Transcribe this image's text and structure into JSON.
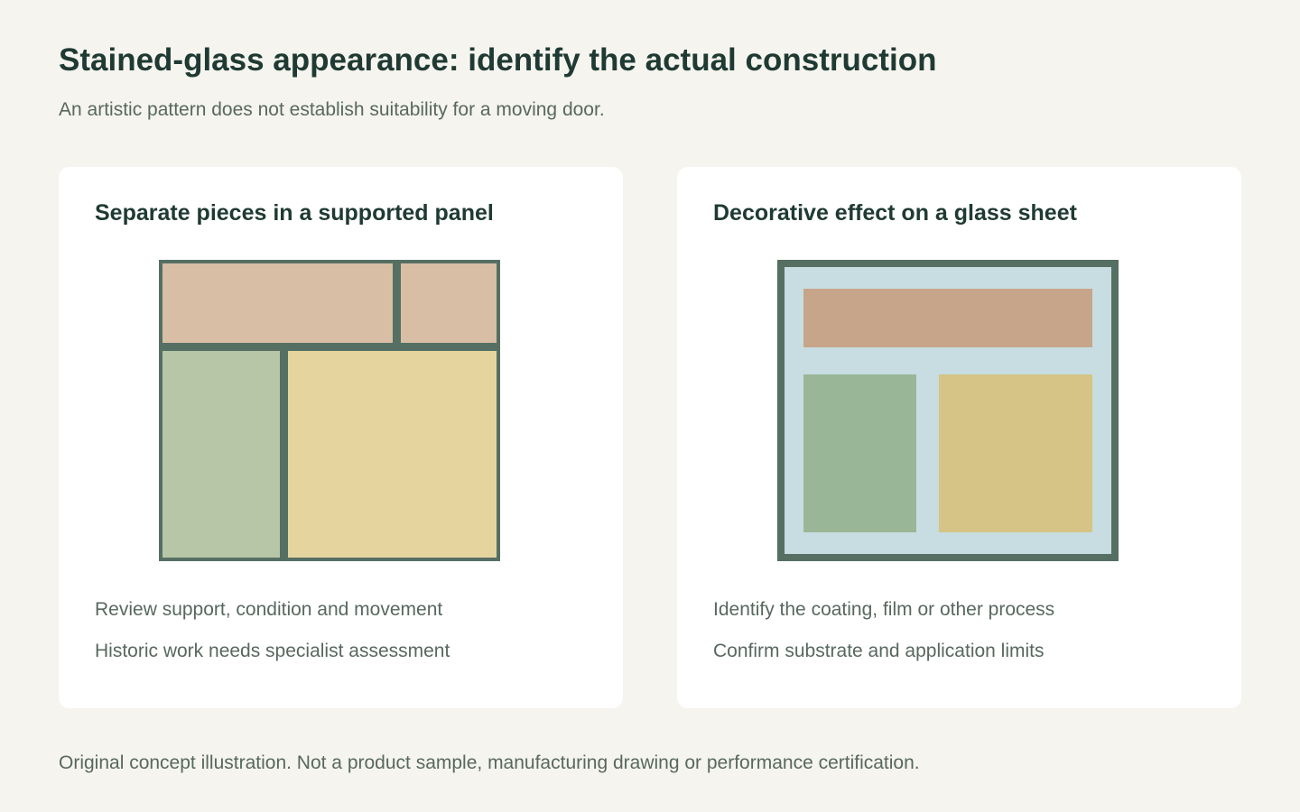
{
  "header": {
    "title": "Stained-glass appearance: identify the actual construction",
    "subtitle": "An artistic pattern does not establish suitability for a moving door."
  },
  "cards": [
    {
      "title": "Separate pieces in a supported panel",
      "notes": [
        "Review support, condition and movement",
        "Historic work needs specialist assessment"
      ]
    },
    {
      "title": "Decorative effect on a glass sheet",
      "notes": [
        "Identify the coating, film or other process",
        "Confirm substrate and application limits"
      ]
    }
  ],
  "footer": {
    "note": "Original concept illustration. Not a product sample, manufacturing drawing or performance certification."
  },
  "colors": {
    "background": "#f5f4ef",
    "frame": "#566f63",
    "glass_sheet": "#c7dde1",
    "left_peach": "#d8bea5",
    "left_green": "#b7c6a7",
    "left_yellow": "#e6d49f",
    "right_peach": "#c7a58a",
    "right_green": "#99b796",
    "right_yellow": "#d6c486"
  }
}
